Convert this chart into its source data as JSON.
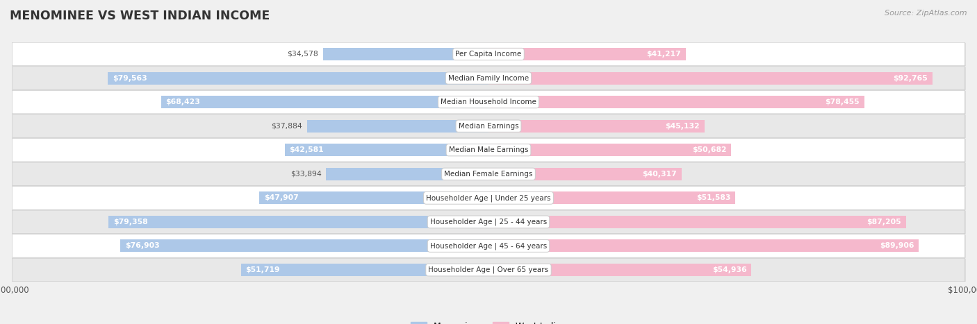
{
  "title": "MENOMINEE VS WEST INDIAN INCOME",
  "source": "Source: ZipAtlas.com",
  "categories": [
    "Per Capita Income",
    "Median Family Income",
    "Median Household Income",
    "Median Earnings",
    "Median Male Earnings",
    "Median Female Earnings",
    "Householder Age | Under 25 years",
    "Householder Age | 25 - 44 years",
    "Householder Age | 45 - 64 years",
    "Householder Age | Over 65 years"
  ],
  "menominee_values": [
    34578,
    79563,
    68423,
    37884,
    42581,
    33894,
    47907,
    79358,
    76903,
    51719
  ],
  "west_indian_values": [
    41217,
    92765,
    78455,
    45132,
    50682,
    40317,
    51583,
    87205,
    89906,
    54936
  ],
  "menominee_labels": [
    "$34,578",
    "$79,563",
    "$68,423",
    "$37,884",
    "$42,581",
    "$33,894",
    "$47,907",
    "$79,358",
    "$76,903",
    "$51,719"
  ],
  "west_indian_labels": [
    "$41,217",
    "$92,765",
    "$78,455",
    "$45,132",
    "$50,682",
    "$40,317",
    "$51,583",
    "$87,205",
    "$89,906",
    "$54,936"
  ],
  "max_value": 100000,
  "bar_height": 0.52,
  "menominee_color_light": "#adc8e8",
  "menominee_color_dark": "#6aaad4",
  "west_indian_color_light": "#f5b8cc",
  "west_indian_color_dark": "#ed7fa4",
  "bg_color": "#f0f0f0",
  "row_bg_light": "#ffffff",
  "row_bg_dark": "#e8e8e8",
  "label_color_inside": "#ffffff",
  "label_color_outside": "#555555",
  "legend_menominee": "Menominee",
  "legend_west_indian": "West Indian",
  "inside_threshold": 0.38
}
